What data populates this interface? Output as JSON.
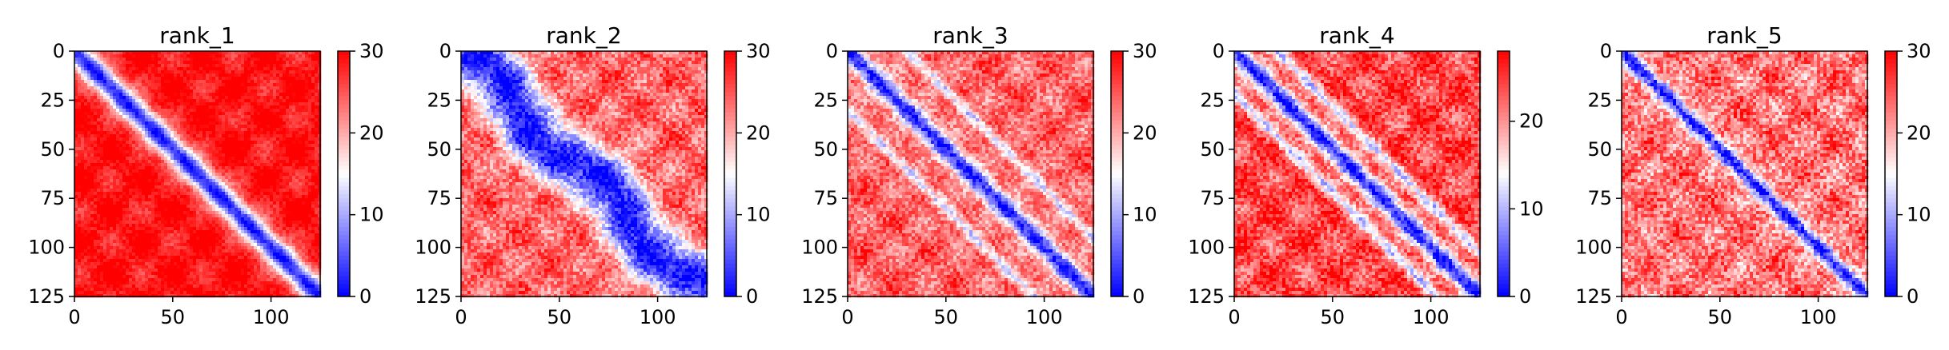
{
  "chart_data": [
    {
      "type": "heatmap",
      "title": "rank_1",
      "x_range": [
        0,
        125
      ],
      "y_range": [
        0,
        125
      ],
      "y_inverted": true,
      "x_ticks": [
        0,
        50,
        100
      ],
      "y_ticks": [
        0,
        25,
        50,
        75,
        100,
        125
      ],
      "x_tick_labels": [
        "0",
        "50",
        "100"
      ],
      "y_tick_labels": [
        "0",
        "25",
        "50",
        "75",
        "100",
        "125"
      ],
      "colorbar": {
        "range": [
          0,
          30
        ],
        "ticks": [
          0,
          10,
          20,
          30
        ],
        "tick_labels": [
          "0",
          "10",
          "20",
          "30"
        ],
        "colormap": [
          "#0000ff",
          "#ffffff",
          "#ff0000"
        ]
      },
      "pattern": {
        "diagonal_band_width": 6,
        "offdiag_bands": [],
        "offdiag_value": 29,
        "wobble": 0,
        "noise": 2
      }
    },
    {
      "type": "heatmap",
      "title": "rank_2",
      "x_range": [
        0,
        125
      ],
      "y_range": [
        0,
        125
      ],
      "y_inverted": true,
      "x_ticks": [
        0,
        50,
        100
      ],
      "y_ticks": [
        0,
        25,
        50,
        75,
        100,
        125
      ],
      "x_tick_labels": [
        "0",
        "50",
        "100"
      ],
      "y_tick_labels": [
        "0",
        "25",
        "50",
        "75",
        "100",
        "125"
      ],
      "colorbar": {
        "range": [
          0,
          30
        ],
        "ticks": [
          0,
          10,
          20,
          30
        ],
        "tick_labels": [
          "0",
          "10",
          "20",
          "30"
        ],
        "colormap": [
          "#0000ff",
          "#ffffff",
          "#ff0000"
        ]
      },
      "pattern": {
        "diagonal_band_width": 14,
        "offdiag_bands": [],
        "offdiag_value": 24,
        "wobble": 6,
        "noise": 4
      }
    },
    {
      "type": "heatmap",
      "title": "rank_3",
      "x_range": [
        0,
        125
      ],
      "y_range": [
        0,
        125
      ],
      "y_inverted": true,
      "x_ticks": [
        0,
        50,
        100
      ],
      "y_ticks": [
        0,
        25,
        50,
        75,
        100,
        125
      ],
      "x_tick_labels": [
        "0",
        "50",
        "100"
      ],
      "y_tick_labels": [
        "0",
        "25",
        "50",
        "75",
        "100",
        "125"
      ],
      "colorbar": {
        "range": [
          0,
          30
        ],
        "ticks": [
          0,
          10,
          20,
          30
        ],
        "tick_labels": [
          "0",
          "10",
          "20",
          "30"
        ],
        "colormap": [
          "#0000ff",
          "#ffffff",
          "#ff0000"
        ]
      },
      "pattern": {
        "diagonal_band_width": 5,
        "offdiag_bands": [
          30,
          -30
        ],
        "offdiag_value": 24,
        "wobble": 0,
        "noise": 4
      }
    },
    {
      "type": "heatmap",
      "title": "rank_4",
      "x_range": [
        0,
        125
      ],
      "y_range": [
        0,
        125
      ],
      "y_inverted": true,
      "x_ticks": [
        0,
        50,
        100
      ],
      "y_ticks": [
        0,
        25,
        50,
        75,
        100,
        125
      ],
      "x_tick_labels": [
        "0",
        "50",
        "100"
      ],
      "y_tick_labels": [
        "0",
        "25",
        "50",
        "75",
        "100",
        "125"
      ],
      "colorbar": {
        "range": [
          0,
          28
        ],
        "ticks": [
          0,
          10,
          20
        ],
        "tick_labels": [
          "0",
          "10",
          "20"
        ],
        "colormap": [
          "#0000ff",
          "#ffffff",
          "#ff0000"
        ]
      },
      "pattern": {
        "diagonal_band_width": 5,
        "offdiag_bands": [
          22,
          -22
        ],
        "offdiag_value": 24,
        "wobble": 0,
        "noise": 4
      }
    },
    {
      "type": "heatmap",
      "title": "rank_5",
      "x_range": [
        0,
        125
      ],
      "y_range": [
        0,
        125
      ],
      "y_inverted": true,
      "x_ticks": [
        0,
        50,
        100
      ],
      "y_ticks": [
        0,
        25,
        50,
        75,
        100,
        125
      ],
      "x_tick_labels": [
        "0",
        "50",
        "100"
      ],
      "y_tick_labels": [
        "0",
        "25",
        "50",
        "75",
        "100",
        "125"
      ],
      "colorbar": {
        "range": [
          0,
          30
        ],
        "ticks": [
          0,
          10,
          20,
          30
        ],
        "tick_labels": [
          "0",
          "10",
          "20",
          "30"
        ],
        "colormap": [
          "#0000ff",
          "#ffffff",
          "#ff0000"
        ]
      },
      "pattern": {
        "diagonal_band_width": 4,
        "offdiag_bands": [],
        "offdiag_value": 23,
        "wobble": 0,
        "noise": 5
      }
    }
  ]
}
